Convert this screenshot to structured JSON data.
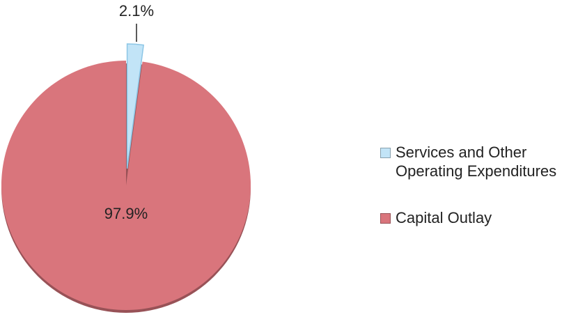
{
  "chart_data": {
    "type": "pie",
    "categories": [
      "Services and Other Operating Expenditures",
      "Capital Outlay"
    ],
    "values": [
      2.1,
      97.9
    ],
    "value_labels": [
      "2.1%",
      "97.9%"
    ],
    "colors": [
      "#c2e4f7",
      "#d9757c"
    ],
    "legend": "right"
  }
}
